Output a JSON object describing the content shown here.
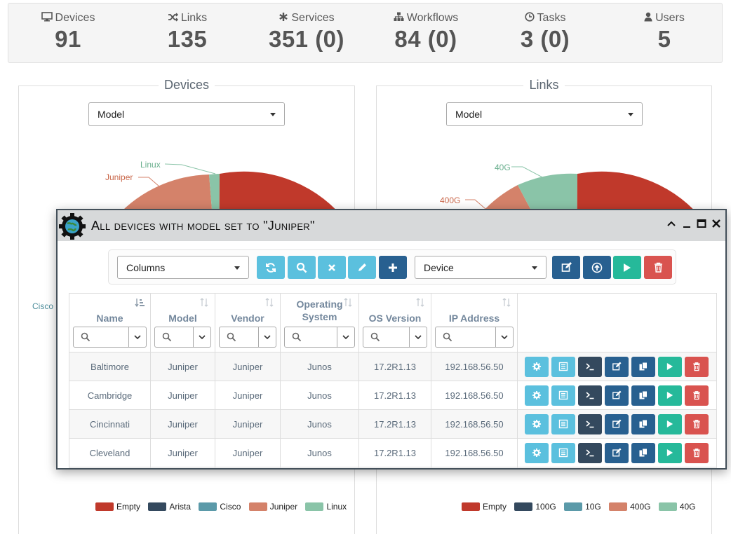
{
  "counters": [
    {
      "label": "Devices",
      "value": "91",
      "icon": "monitor-icon"
    },
    {
      "label": "Links",
      "value": "135",
      "icon": "random-icon"
    },
    {
      "label": "Services",
      "value": "351 (0)",
      "icon": "asterisk-icon"
    },
    {
      "label": "Workflows",
      "value": "84 (0)",
      "icon": "sitemap-icon"
    },
    {
      "label": "Tasks",
      "value": "3 (0)",
      "icon": "clock-icon"
    },
    {
      "label": "Users",
      "value": "5",
      "icon": "user-icon"
    }
  ],
  "panels": {
    "devices": {
      "title": "Devices",
      "select_value": "Model",
      "pie_labels": {
        "linux": "Linux",
        "juniper": "Juniper",
        "cisco": "Cisco"
      },
      "legend": [
        {
          "label": "Empty",
          "color": "#c0392b"
        },
        {
          "label": "Arista",
          "color": "#34495e"
        },
        {
          "label": "Cisco",
          "color": "#5b9aa9"
        },
        {
          "label": "Juniper",
          "color": "#d4826a"
        },
        {
          "label": "Linux",
          "color": "#8ac4a8"
        }
      ]
    },
    "links": {
      "title": "Links",
      "select_value": "Model",
      "pie_labels": {
        "g40": "40G",
        "g400": "400G"
      },
      "legend": [
        {
          "label": "Empty",
          "color": "#c0392b"
        },
        {
          "label": "100G",
          "color": "#34495e"
        },
        {
          "label": "10G",
          "color": "#5b9aa9"
        },
        {
          "label": "400G",
          "color": "#d4826a"
        },
        {
          "label": "40G",
          "color": "#8ac4a8"
        }
      ]
    }
  },
  "modal": {
    "title": "All devices with model set to \"Juniper\"",
    "columns_select": "Columns",
    "type_select": "Device",
    "headers": [
      "Name",
      "Model",
      "Vendor",
      "Operating System",
      "OS Version",
      "IP Address"
    ],
    "header_lines": {
      "os_1": "Operating",
      "os_2": "System"
    },
    "rows": [
      {
        "name": "Baltimore",
        "model": "Juniper",
        "vendor": "Juniper",
        "os": "Junos",
        "version": "17.2R1.13",
        "ip": "192.168.56.50"
      },
      {
        "name": "Cambridge",
        "model": "Juniper",
        "vendor": "Juniper",
        "os": "Junos",
        "version": "17.2R1.13",
        "ip": "192.168.56.50"
      },
      {
        "name": "Cincinnati",
        "model": "Juniper",
        "vendor": "Juniper",
        "os": "Junos",
        "version": "17.2R1.13",
        "ip": "192.168.56.50"
      },
      {
        "name": "Cleveland",
        "model": "Juniper",
        "vendor": "Juniper",
        "os": "Junos",
        "version": "17.2R1.13",
        "ip": "192.168.56.50"
      }
    ]
  }
}
